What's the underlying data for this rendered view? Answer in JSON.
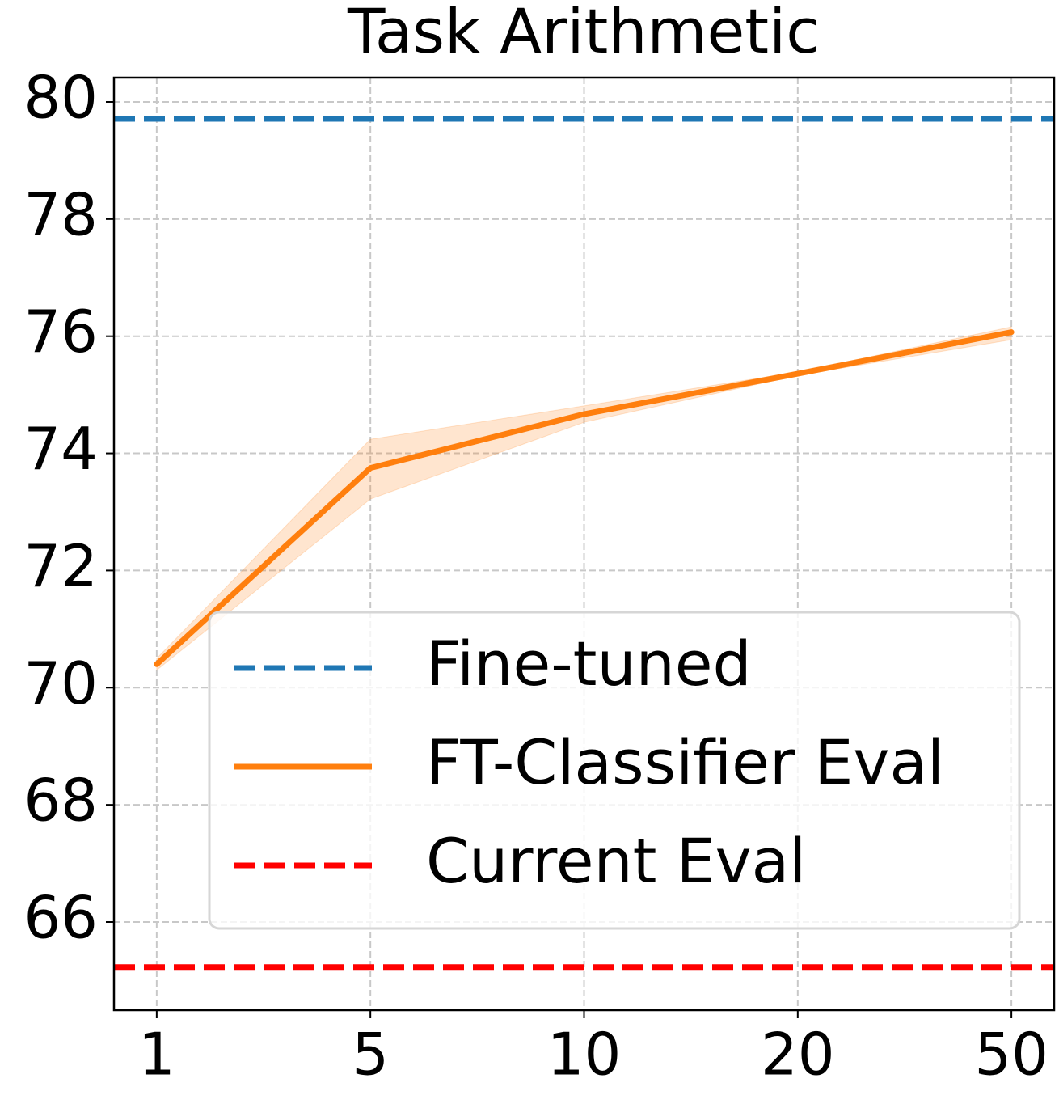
{
  "chart_data": {
    "type": "line",
    "title": "Task Arithmetic",
    "categories": [
      "1",
      "5",
      "10",
      "20",
      "50"
    ],
    "ylim": [
      64.495,
      80.414
    ],
    "yticks": [
      66,
      68,
      70,
      72,
      74,
      76,
      78,
      80
    ],
    "grid": true,
    "legend": "lower right",
    "series": [
      {
        "name": "Fine-tuned",
        "color": "#1f77b4",
        "dashed": true,
        "hline": 79.71
      },
      {
        "name": "FT-Classifier Eval",
        "color": "#ff7f0e",
        "dashed": false,
        "values": [
          70.4,
          73.75,
          74.67,
          75.36,
          76.07
        ],
        "lower": [
          70.3,
          73.22,
          74.53,
          75.33,
          75.94
        ],
        "upper": [
          70.5,
          74.24,
          74.81,
          75.39,
          76.16
        ]
      },
      {
        "name": "Current Eval",
        "color": "#ff0000",
        "dashed": true,
        "hline": 65.23
      }
    ]
  }
}
